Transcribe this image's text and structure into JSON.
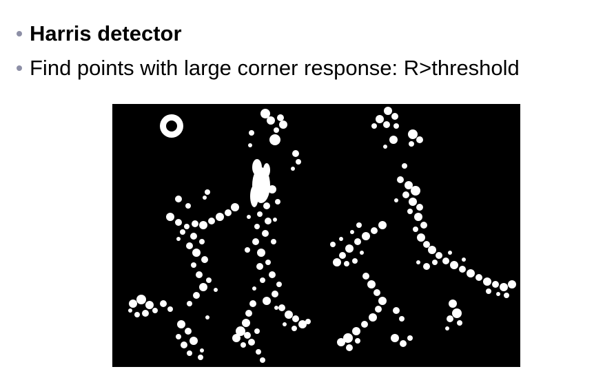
{
  "slide": {
    "bullets": [
      {
        "text": "Harris detector",
        "bold": true
      },
      {
        "text": "Find points with large corner response: R>threshold",
        "bold": false
      }
    ]
  },
  "figure": {
    "background_color": "#000000",
    "blob_color": "#ffffff"
  }
}
